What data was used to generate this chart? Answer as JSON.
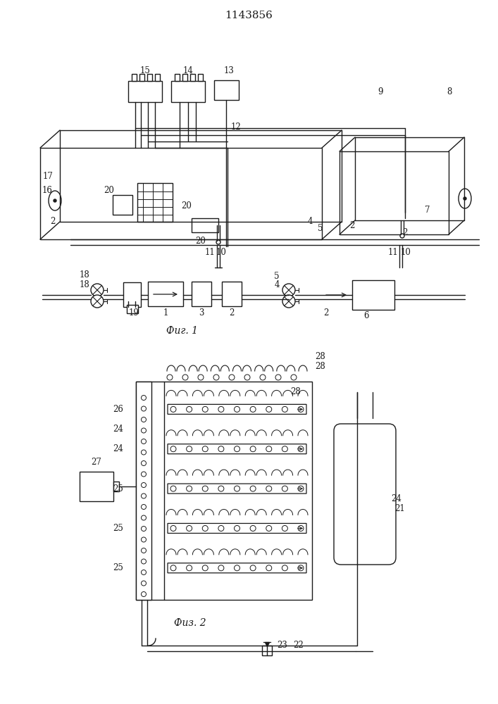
{
  "title": "1143856",
  "fig1_label": "Фиг. 1",
  "fig2_label": "Физ. 2",
  "bg_color": "#ffffff",
  "line_color": "#1a1a1a",
  "lw": 1.0
}
